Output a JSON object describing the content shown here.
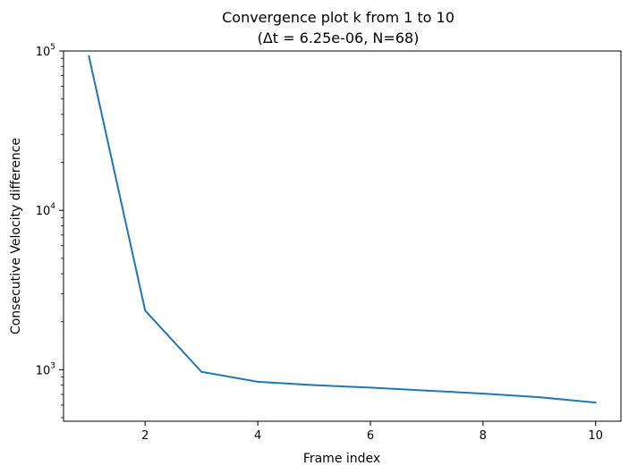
{
  "chart_data": {
    "type": "line",
    "title": "Convergence plot k from 1 to 10",
    "subtitle": "(Δt = 6.25e-06, N=68)",
    "xlabel": "Frame index",
    "ylabel": "Consecutive Velocity difference",
    "yscale": "log",
    "xlim": [
      0.55,
      10.45
    ],
    "ylim": [
      475,
      100000
    ],
    "grid": false,
    "x_ticks": [
      2,
      4,
      6,
      8,
      10
    ],
    "y_ticks": [
      {
        "value": 1000,
        "base": "10",
        "exp": "3"
      },
      {
        "value": 10000,
        "base": "10",
        "exp": "4"
      },
      {
        "value": 100000,
        "base": "10",
        "exp": "5"
      }
    ],
    "y_minor_ticks": [
      500,
      600,
      700,
      800,
      900,
      2000,
      3000,
      4000,
      5000,
      6000,
      7000,
      8000,
      9000,
      20000,
      30000,
      40000,
      50000,
      60000,
      70000,
      80000,
      90000
    ],
    "series": [
      {
        "color": "#1f77b4",
        "x": [
          1,
          2,
          3,
          4,
          5,
          6,
          7,
          8,
          9,
          10
        ],
        "y": [
          93000,
          2350,
          970,
          840,
          800,
          772,
          740,
          708,
          672,
          622
        ]
      }
    ]
  }
}
